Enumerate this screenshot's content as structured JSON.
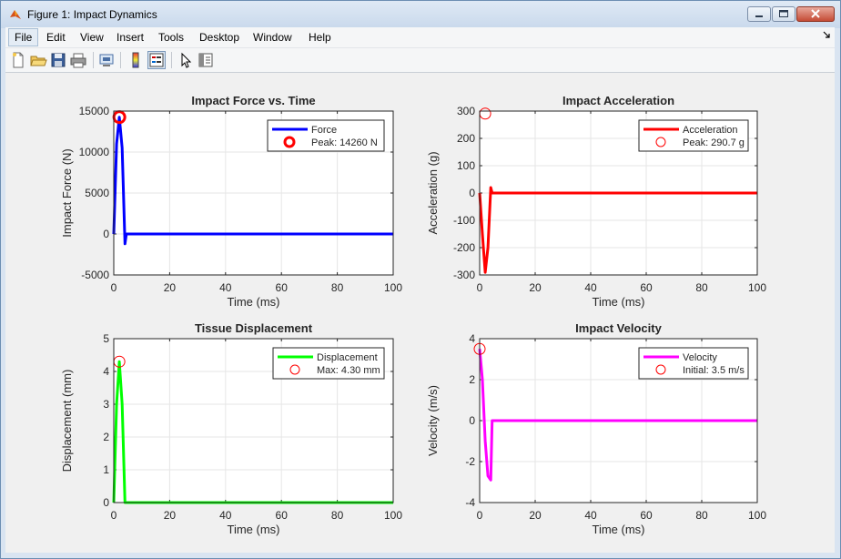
{
  "window": {
    "title": "Figure 1: Impact Dynamics",
    "icon": "matlab-icon",
    "controls": [
      "minimize-icon",
      "maximize-icon",
      "close-icon"
    ]
  },
  "menu": {
    "items": [
      "File",
      "Edit",
      "View",
      "Insert",
      "Tools",
      "Desktop",
      "Window",
      "Help"
    ],
    "active": "File",
    "dock_icon": "dock-arrow-icon"
  },
  "toolbar": {
    "icons": [
      "new-figure-icon",
      "open-file-icon",
      "save-icon",
      "print-icon",
      "link-plot-icon",
      "insert-colorbar-icon",
      "insert-legend-icon",
      "edit-plot-icon",
      "property-inspector-icon"
    ]
  },
  "chart_data": [
    {
      "type": "line",
      "title": "Impact Force vs. Time",
      "xlabel": "Time (ms)",
      "ylabel": "Impact Force (N)",
      "xlim": [
        0,
        100
      ],
      "ylim": [
        -5000,
        15000
      ],
      "xticks": [
        "0",
        "20",
        "40",
        "60",
        "80",
        "100"
      ],
      "yticks": [
        "-5000",
        "0",
        "5000",
        "10000",
        "15000"
      ],
      "grid": true,
      "legend_position": "top-right",
      "series": [
        {
          "name": "Force",
          "color": "#0000ff",
          "width": 3,
          "x": [
            0,
            1,
            2,
            3,
            4,
            4.5,
            100
          ],
          "y": [
            0,
            11000,
            14260,
            10500,
            -1200,
            0,
            0
          ]
        }
      ],
      "marker": {
        "name": "Peak: 14260 N",
        "x": 2,
        "y": 14260,
        "color": "#ff0000",
        "stroke": 3
      }
    },
    {
      "type": "line",
      "title": "Impact Acceleration",
      "xlabel": "Time (ms)",
      "ylabel": "Acceleration (g)",
      "xlim": [
        0,
        100
      ],
      "ylim": [
        -300,
        300
      ],
      "xticks": [
        "0",
        "20",
        "40",
        "60",
        "80",
        "100"
      ],
      "yticks": [
        "-300",
        "-200",
        "-100",
        "0",
        "100",
        "200",
        "300"
      ],
      "grid": true,
      "legend_position": "top-right",
      "series": [
        {
          "name": "Acceleration",
          "color": "#ff0000",
          "width": 3,
          "x": [
            0,
            1,
            2,
            3,
            4,
            4.5,
            100
          ],
          "y": [
            0,
            -150,
            -290.7,
            -200,
            20,
            0,
            0
          ]
        }
      ],
      "marker": {
        "name": "Peak: 290.7 g",
        "x": 2,
        "y": 290.7,
        "color": "#ff0000",
        "stroke": 1
      }
    },
    {
      "type": "line",
      "title": "Tissue Displacement",
      "xlabel": "Time (ms)",
      "ylabel": "Displacement (mm)",
      "xlim": [
        0,
        100
      ],
      "ylim": [
        0,
        5
      ],
      "xticks": [
        "0",
        "20",
        "40",
        "60",
        "80",
        "100"
      ],
      "yticks": [
        "0",
        "1",
        "2",
        "3",
        "4",
        "5"
      ],
      "grid": true,
      "legend_position": "top-right",
      "series": [
        {
          "name": "Displacement",
          "color": "#00ff00",
          "width": 3,
          "x": [
            0,
            1,
            2,
            3,
            4,
            100
          ],
          "y": [
            0,
            3.0,
            4.3,
            3.0,
            0,
            0
          ]
        }
      ],
      "marker": {
        "name": "Max: 4.30 mm",
        "x": 2,
        "y": 4.3,
        "color": "#ff0000",
        "stroke": 1
      }
    },
    {
      "type": "line",
      "title": "Impact Velocity",
      "xlabel": "Time (ms)",
      "ylabel": "Velocity (m/s)",
      "xlim": [
        0,
        100
      ],
      "ylim": [
        -4,
        4
      ],
      "xticks": [
        "0",
        "20",
        "40",
        "60",
        "80",
        "100"
      ],
      "yticks": [
        "-4",
        "-2",
        "0",
        "2",
        "4"
      ],
      "grid": true,
      "legend_position": "top-right",
      "series": [
        {
          "name": "Velocity",
          "color": "#ff00ff",
          "width": 3,
          "x": [
            0,
            1,
            2,
            3,
            4,
            4.5,
            100
          ],
          "y": [
            3.5,
            2.0,
            -1.0,
            -2.7,
            -2.9,
            0,
            0
          ]
        }
      ],
      "marker": {
        "name": "Initial: 3.5 m/s",
        "x": 0,
        "y": 3.5,
        "color": "#ff0000",
        "stroke": 1
      }
    }
  ]
}
